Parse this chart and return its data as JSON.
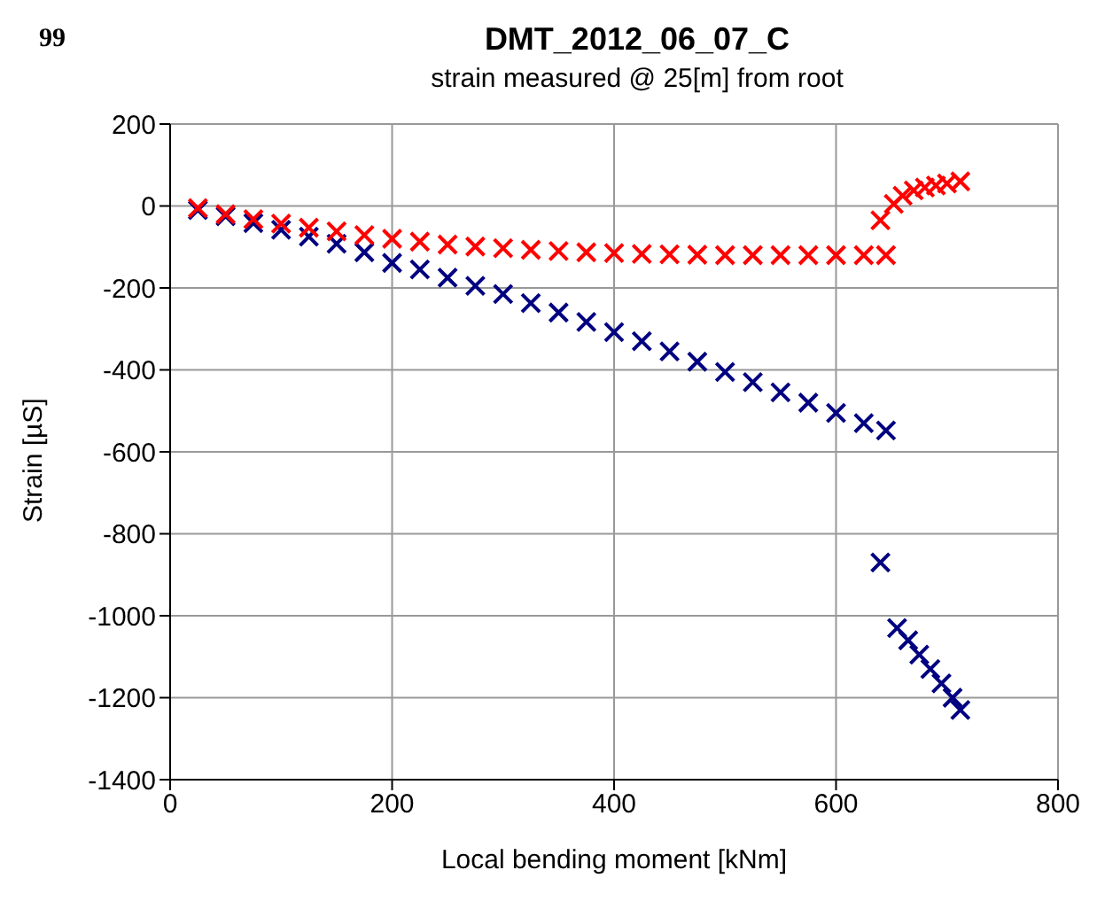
{
  "chart_data": {
    "type": "scatter",
    "title": "DMT_2012_06_07_C",
    "subtitle": "strain measured @ 25[m] from root",
    "xlabel": "Local bending moment [kNm]",
    "ylabel": "Strain [µS]",
    "annotations": [
      "99"
    ],
    "xlim": [
      0,
      800
    ],
    "xticks": [
      0,
      200,
      400,
      600,
      800
    ],
    "ylim": [
      -1400,
      200
    ],
    "yticks": [
      -1400,
      -1200,
      -1000,
      -800,
      -600,
      -400,
      -200,
      0,
      200
    ],
    "grid": true,
    "marker": "cross",
    "series": [
      {
        "color": "#000080",
        "x": [
          25,
          50,
          75,
          100,
          125,
          150,
          175,
          200,
          225,
          250,
          275,
          300,
          325,
          350,
          375,
          400,
          425,
          450,
          475,
          500,
          525,
          550,
          575,
          600,
          625,
          645,
          640,
          655,
          665,
          675,
          685,
          695,
          705,
          712
        ],
        "values": [
          -10,
          -25,
          -42,
          -58,
          -75,
          -92,
          -113,
          -139,
          -155,
          -175,
          -195,
          -215,
          -237,
          -260,
          -283,
          -308,
          -330,
          -355,
          -380,
          -405,
          -430,
          -455,
          -480,
          -505,
          -530,
          -548,
          -870,
          -1030,
          -1060,
          -1095,
          -1130,
          -1165,
          -1200,
          -1230
        ]
      },
      {
        "color": "#ff0000",
        "x": [
          25,
          50,
          75,
          100,
          125,
          150,
          175,
          200,
          225,
          250,
          275,
          300,
          325,
          350,
          375,
          400,
          425,
          450,
          475,
          500,
          525,
          550,
          575,
          600,
          625,
          645,
          640,
          652,
          660,
          670,
          680,
          690,
          700,
          712
        ],
        "values": [
          -5,
          -20,
          -32,
          -43,
          -53,
          -62,
          -71,
          -80,
          -87,
          -94,
          -99,
          -103,
          -107,
          -110,
          -113,
          -115,
          -117,
          -118,
          -119,
          -120,
          -120,
          -120,
          -120,
          -120,
          -120,
          -120,
          -35,
          5,
          25,
          38,
          45,
          50,
          55,
          60
        ]
      }
    ]
  }
}
